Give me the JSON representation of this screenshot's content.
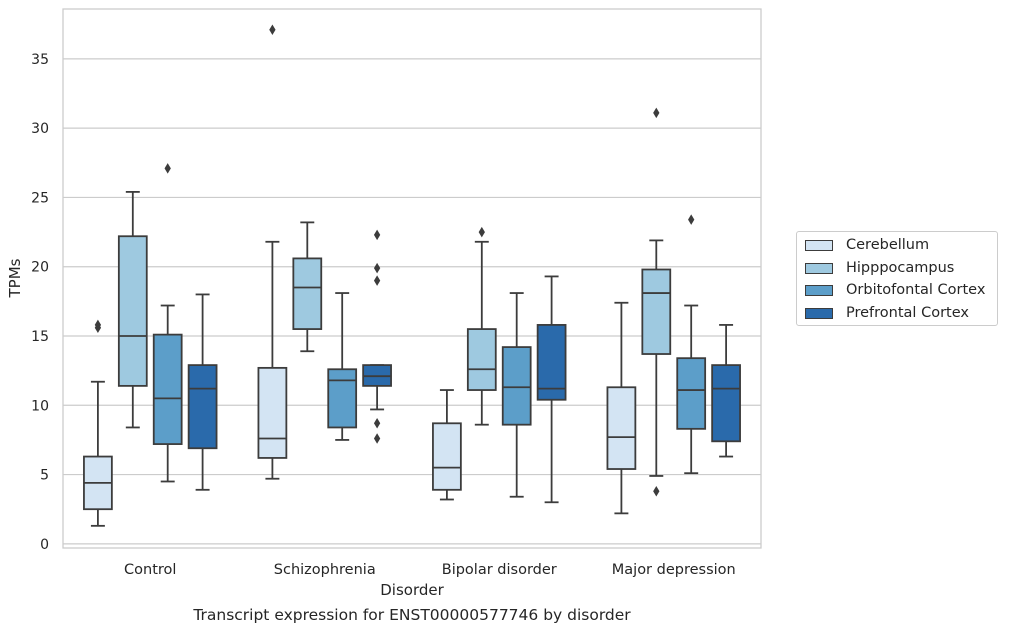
{
  "chart_data": {
    "type": "box",
    "xlabel": "Disorder",
    "ylabel": "TPMs",
    "caption": "Transcript expression for ENST00000577746 by disorder",
    "categories": [
      "Control",
      "Schizophrenia",
      "Bipolar disorder",
      "Major depression"
    ],
    "ylim": [
      -0.3,
      38.6
    ],
    "yticks": [
      "0",
      "5",
      "10",
      "15",
      "20",
      "25",
      "30",
      "35"
    ],
    "grid": "horizontal",
    "legend_position": "outside-right",
    "series": [
      {
        "name": "Cerebellum",
        "color": "#d3e4f3",
        "boxes": [
          {
            "whislo": 1.3,
            "q1": 2.5,
            "med": 4.4,
            "q3": 6.3,
            "whishi": 11.7,
            "fliers": [
              15.6,
              15.8
            ]
          },
          {
            "whislo": 4.7,
            "q1": 6.2,
            "med": 7.6,
            "q3": 12.7,
            "whishi": 21.8,
            "fliers": [
              37.1
            ]
          },
          {
            "whislo": 3.2,
            "q1": 3.9,
            "med": 5.5,
            "q3": 8.7,
            "whishi": 11.1,
            "fliers": []
          },
          {
            "whislo": 2.2,
            "q1": 5.4,
            "med": 7.7,
            "q3": 11.3,
            "whishi": 17.4,
            "fliers": []
          }
        ]
      },
      {
        "name": "Hipppocampus",
        "color": "#9ec9e0",
        "boxes": [
          {
            "whislo": 8.4,
            "q1": 11.4,
            "med": 15.0,
            "q3": 22.2,
            "whishi": 25.4,
            "fliers": []
          },
          {
            "whislo": 13.9,
            "q1": 15.5,
            "med": 18.5,
            "q3": 20.6,
            "whishi": 23.2,
            "fliers": []
          },
          {
            "whislo": 8.6,
            "q1": 11.1,
            "med": 12.6,
            "q3": 15.5,
            "whishi": 21.8,
            "fliers": [
              22.5
            ]
          },
          {
            "whislo": 4.9,
            "q1": 13.7,
            "med": 18.1,
            "q3": 19.8,
            "whishi": 21.9,
            "fliers": [
              3.8,
              31.1
            ]
          }
        ]
      },
      {
        "name": "Orbitofontal Cortex",
        "color": "#5c9ec9",
        "boxes": [
          {
            "whislo": 4.5,
            "q1": 7.2,
            "med": 10.5,
            "q3": 15.1,
            "whishi": 17.2,
            "fliers": [
              27.1
            ]
          },
          {
            "whislo": 7.5,
            "q1": 8.4,
            "med": 11.8,
            "q3": 12.6,
            "whishi": 18.1,
            "fliers": []
          },
          {
            "whislo": 3.4,
            "q1": 8.6,
            "med": 11.3,
            "q3": 14.2,
            "whishi": 18.1,
            "fliers": []
          },
          {
            "whislo": 5.1,
            "q1": 8.3,
            "med": 11.1,
            "q3": 13.4,
            "whishi": 17.2,
            "fliers": [
              23.4
            ]
          }
        ]
      },
      {
        "name": "Prefrontal Cortex",
        "color": "#2a6aab",
        "boxes": [
          {
            "whislo": 3.9,
            "q1": 6.9,
            "med": 11.2,
            "q3": 12.9,
            "whishi": 18.0,
            "fliers": []
          },
          {
            "whislo": 9.7,
            "q1": 11.4,
            "med": 12.1,
            "q3": 12.9,
            "whishi": 12.9,
            "fliers": [
              7.6,
              8.7,
              19.0,
              19.9,
              22.3
            ]
          },
          {
            "whislo": 3.0,
            "q1": 10.4,
            "med": 11.2,
            "q3": 15.8,
            "whishi": 19.3,
            "fliers": []
          },
          {
            "whislo": 6.3,
            "q1": 7.4,
            "med": 11.2,
            "q3": 12.9,
            "whishi": 15.8,
            "fliers": []
          }
        ]
      }
    ]
  }
}
